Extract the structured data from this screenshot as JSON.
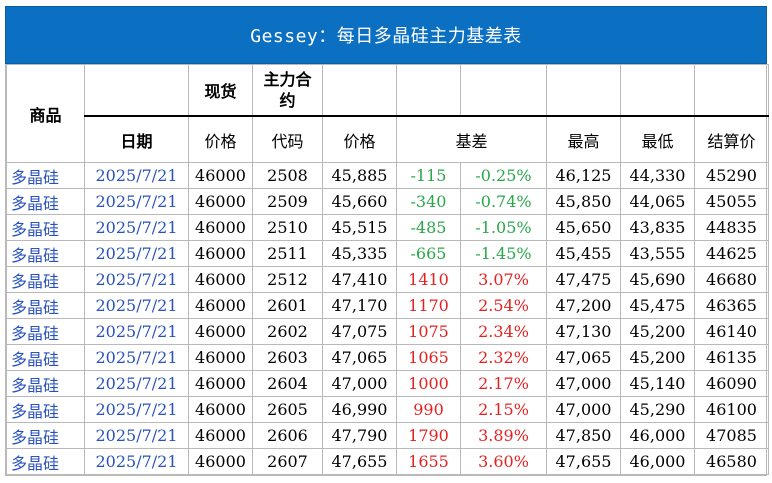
{
  "title": "Gessey：每日多晶硅主力基差表",
  "headers": {
    "product": "商品",
    "spot": "现货",
    "main_contract": "主力合约",
    "date": "日期",
    "price": "价格",
    "code": "代码",
    "futures_price": "价格",
    "basis": "基差",
    "high": "最高",
    "low": "最低",
    "settle": "结算价"
  },
  "rows": [
    {
      "product": "多晶硅",
      "date": "2025/7/21",
      "spot": "46000",
      "code": "2508",
      "price": "45,885",
      "basis": "-115",
      "basis_pct": "-0.25%",
      "high": "46,125",
      "low": "44,330",
      "settle": "45290"
    },
    {
      "product": "多晶硅",
      "date": "2025/7/21",
      "spot": "46000",
      "code": "2509",
      "price": "45,660",
      "basis": "-340",
      "basis_pct": "-0.74%",
      "high": "45,850",
      "low": "44,065",
      "settle": "45055"
    },
    {
      "product": "多晶硅",
      "date": "2025/7/21",
      "spot": "46000",
      "code": "2510",
      "price": "45,515",
      "basis": "-485",
      "basis_pct": "-1.05%",
      "high": "45,650",
      "low": "43,835",
      "settle": "44835"
    },
    {
      "product": "多晶硅",
      "date": "2025/7/21",
      "spot": "46000",
      "code": "2511",
      "price": "45,335",
      "basis": "-665",
      "basis_pct": "-1.45%",
      "high": "45,455",
      "low": "43,555",
      "settle": "44625"
    },
    {
      "product": "多晶硅",
      "date": "2025/7/21",
      "spot": "46000",
      "code": "2512",
      "price": "47,410",
      "basis": "1410",
      "basis_pct": "3.07%",
      "high": "47,475",
      "low": "45,690",
      "settle": "46680"
    },
    {
      "product": "多晶硅",
      "date": "2025/7/21",
      "spot": "46000",
      "code": "2601",
      "price": "47,170",
      "basis": "1170",
      "basis_pct": "2.54%",
      "high": "47,200",
      "low": "45,475",
      "settle": "46365"
    },
    {
      "product": "多晶硅",
      "date": "2025/7/21",
      "spot": "46000",
      "code": "2602",
      "price": "47,075",
      "basis": "1075",
      "basis_pct": "2.34%",
      "high": "47,130",
      "low": "45,200",
      "settle": "46140"
    },
    {
      "product": "多晶硅",
      "date": "2025/7/21",
      "spot": "46000",
      "code": "2603",
      "price": "47,065",
      "basis": "1065",
      "basis_pct": "2.32%",
      "high": "47,065",
      "low": "45,200",
      "settle": "46135"
    },
    {
      "product": "多晶硅",
      "date": "2025/7/21",
      "spot": "46000",
      "code": "2604",
      "price": "47,000",
      "basis": "1000",
      "basis_pct": "2.17%",
      "high": "47,000",
      "low": "45,140",
      "settle": "46090"
    },
    {
      "product": "多晶硅",
      "date": "2025/7/21",
      "spot": "46000",
      "code": "2605",
      "price": "46,990",
      "basis": "990",
      "basis_pct": "2.15%",
      "high": "47,000",
      "low": "45,290",
      "settle": "46100"
    },
    {
      "product": "多晶硅",
      "date": "2025/7/21",
      "spot": "46000",
      "code": "2606",
      "price": "47,790",
      "basis": "1790",
      "basis_pct": "3.89%",
      "high": "47,850",
      "low": "46,000",
      "settle": "47085"
    },
    {
      "product": "多晶硅",
      "date": "2025/7/21",
      "spot": "46000",
      "code": "2607",
      "price": "47,655",
      "basis": "1655",
      "basis_pct": "3.60%",
      "high": "47,655",
      "low": "46,000",
      "settle": "46580"
    }
  ],
  "colors": {
    "title_bg": "#0b6fc2",
    "link_blue": "#2a52be",
    "negative_green": "#2aa84a",
    "positive_red": "#e52222"
  }
}
